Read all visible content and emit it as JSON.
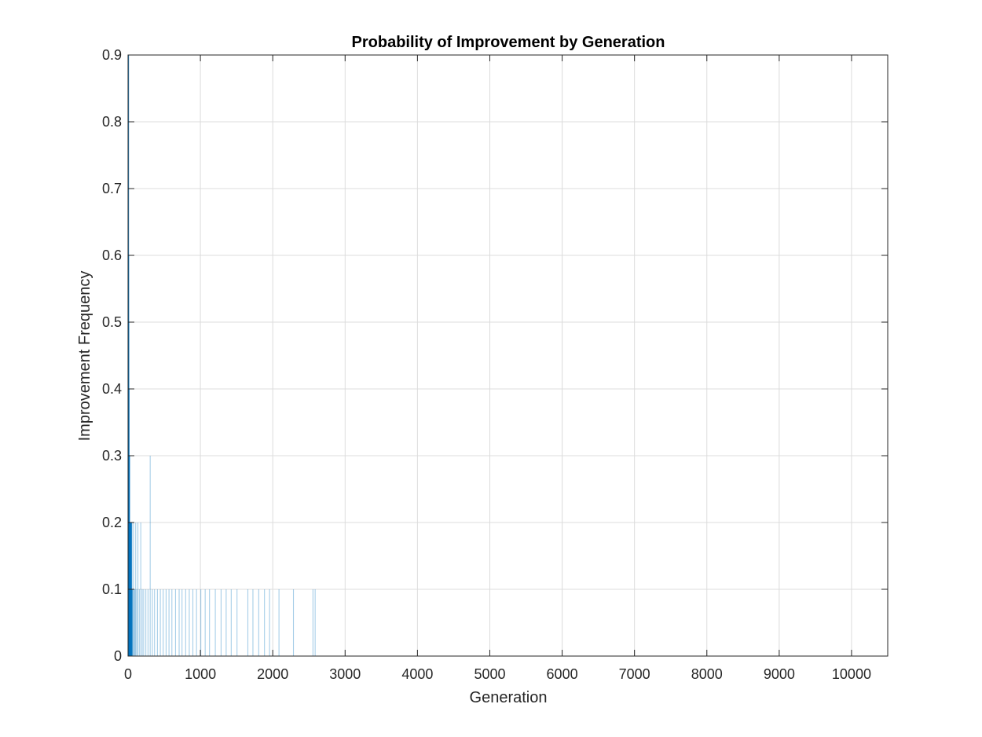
{
  "colors": {
    "bar": "#0072BD",
    "background": "#ffffff",
    "grid": "#dcdcdc",
    "axis": "#262626"
  },
  "chart_data": {
    "type": "bar",
    "title": "Probability of Improvement by Generation",
    "xlabel": "Generation",
    "ylabel": "Improvement Frequency",
    "xlim": [
      0,
      10500
    ],
    "ylim": [
      0,
      0.9
    ],
    "xticks": [
      0,
      1000,
      2000,
      3000,
      4000,
      5000,
      6000,
      7000,
      8000,
      9000,
      10000
    ],
    "yticks": [
      0,
      0.1,
      0.2,
      0.3,
      0.4,
      0.5,
      0.6,
      0.7,
      0.8,
      0.9
    ],
    "xtick_labels": [
      "0",
      "1000",
      "2000",
      "3000",
      "4000",
      "5000",
      "6000",
      "7000",
      "8000",
      "9000",
      "10000"
    ],
    "ytick_labels": [
      "0",
      "0.1",
      "0.2",
      "0.3",
      "0.4",
      "0.5",
      "0.6",
      "0.7",
      "0.8",
      "0.9"
    ],
    "grid": true,
    "series": [
      {
        "x": [
          1,
          2,
          3,
          4,
          5,
          6,
          7,
          8,
          9,
          10,
          12,
          14,
          16,
          18,
          20,
          23,
          26,
          30,
          35,
          40,
          45,
          50,
          60,
          70,
          80,
          90,
          100,
          115,
          130,
          150,
          170,
          190,
          210,
          240,
          270,
          300,
          330,
          360,
          400,
          440,
          480,
          520,
          560,
          600,
          650,
          700,
          740,
          790,
          840,
          890,
          940,
          1000,
          1060,
          1120,
          1200,
          1280,
          1350,
          1420,
          1500,
          1650,
          1720,
          1800,
          1880,
          1950,
          2080,
          2280,
          2550,
          2580
        ],
        "values": [
          0.9,
          0.6,
          0.5,
          0.5,
          0.4,
          0.4,
          0.4,
          0.3,
          0.3,
          0.3,
          0.3,
          0.3,
          0.2,
          0.2,
          0.2,
          0.2,
          0.2,
          0.2,
          0.2,
          0.1,
          0.2,
          0.1,
          0.1,
          0.2,
          0.1,
          0.1,
          0.2,
          0.1,
          0.2,
          0.1,
          0.2,
          0.1,
          0.1,
          0.1,
          0.1,
          0.3,
          0.1,
          0.1,
          0.1,
          0.1,
          0.1,
          0.1,
          0.1,
          0.1,
          0.1,
          0.1,
          0.1,
          0.1,
          0.1,
          0.1,
          0.1,
          0.1,
          0.1,
          0.1,
          0.1,
          0.1,
          0.1,
          0.1,
          0.1,
          0.1,
          0.1,
          0.1,
          0.1,
          0.1,
          0.1,
          0.1,
          0.1,
          0.1
        ]
      }
    ]
  }
}
